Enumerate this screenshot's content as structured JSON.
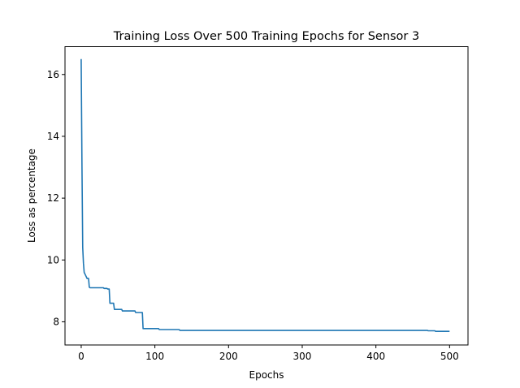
{
  "chart_data": {
    "type": "line",
    "title": "Training Loss Over 500 Training Epochs for Sensor 3",
    "xlabel": "Epochs",
    "ylabel": "Loss as percentage",
    "xlim": [
      -22,
      525
    ],
    "ylim": [
      7.25,
      16.9
    ],
    "xticks": [
      0,
      100,
      200,
      300,
      400,
      500
    ],
    "yticks": [
      8,
      10,
      12,
      14,
      16
    ],
    "grid": false,
    "series_color": "#1f77b4",
    "series": [
      {
        "points": [
          [
            0,
            16.5
          ],
          [
            1,
            13.0
          ],
          [
            2,
            10.4
          ],
          [
            3,
            9.9
          ],
          [
            4,
            9.6
          ],
          [
            6,
            9.5
          ],
          [
            8,
            9.4
          ],
          [
            10,
            9.4
          ],
          [
            11,
            9.12
          ],
          [
            12,
            9.1
          ],
          [
            30,
            9.1
          ],
          [
            31,
            9.08
          ],
          [
            35,
            9.08
          ],
          [
            36,
            9.06
          ],
          [
            38,
            9.06
          ],
          [
            39,
            8.6
          ],
          [
            44,
            8.6
          ],
          [
            45,
            8.4
          ],
          [
            55,
            8.4
          ],
          [
            56,
            8.35
          ],
          [
            73,
            8.35
          ],
          [
            74,
            8.3
          ],
          [
            83,
            8.3
          ],
          [
            84,
            7.78
          ],
          [
            105,
            7.78
          ],
          [
            106,
            7.75
          ],
          [
            133,
            7.75
          ],
          [
            134,
            7.72
          ],
          [
            470,
            7.72
          ],
          [
            471,
            7.71
          ],
          [
            480,
            7.71
          ],
          [
            481,
            7.69
          ],
          [
            500,
            7.69
          ]
        ]
      }
    ]
  }
}
